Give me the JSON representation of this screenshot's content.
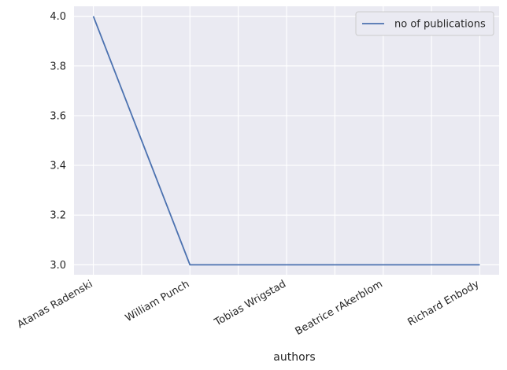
{
  "chart_data": {
    "type": "line",
    "categories": [
      "Atanas Radenski",
      "William Punch",
      "Tobias Wrigstad",
      "Beatrice rAkerblom",
      "Richard Enbody"
    ],
    "labeled_categories": [
      "Atanas Radenski",
      "William Punch",
      "Tobias Wrigstad",
      "Beatrice rAkerblom",
      "Richard Enbody"
    ],
    "x_points": [
      0,
      2,
      4,
      6,
      8
    ],
    "series": [
      {
        "name": "no of publications",
        "x": [
          0,
          1,
          2,
          3,
          4,
          5,
          6,
          7,
          8
        ],
        "values": [
          4.0,
          3.5,
          3.0,
          3.0,
          3.0,
          3.0,
          3.0,
          3.0,
          3.0
        ],
        "color": "#4c72b0"
      }
    ],
    "xlabel": "authors",
    "ylabel": "",
    "ylim": [
      2.96,
      4.04
    ],
    "xlim": [
      -0.4,
      8.4
    ],
    "yticks": [
      3.0,
      3.2,
      3.4,
      3.6,
      3.8,
      4.0
    ],
    "ytick_labels": [
      "3.0",
      "3.2",
      "3.4",
      "3.6",
      "3.8",
      "4.0"
    ],
    "xticks": [
      0,
      1,
      2,
      3,
      4,
      5,
      6,
      7,
      8
    ],
    "grid": true,
    "legend": "top-right",
    "background_color": "#eaeaf2",
    "grid_color": "#ffffff"
  }
}
